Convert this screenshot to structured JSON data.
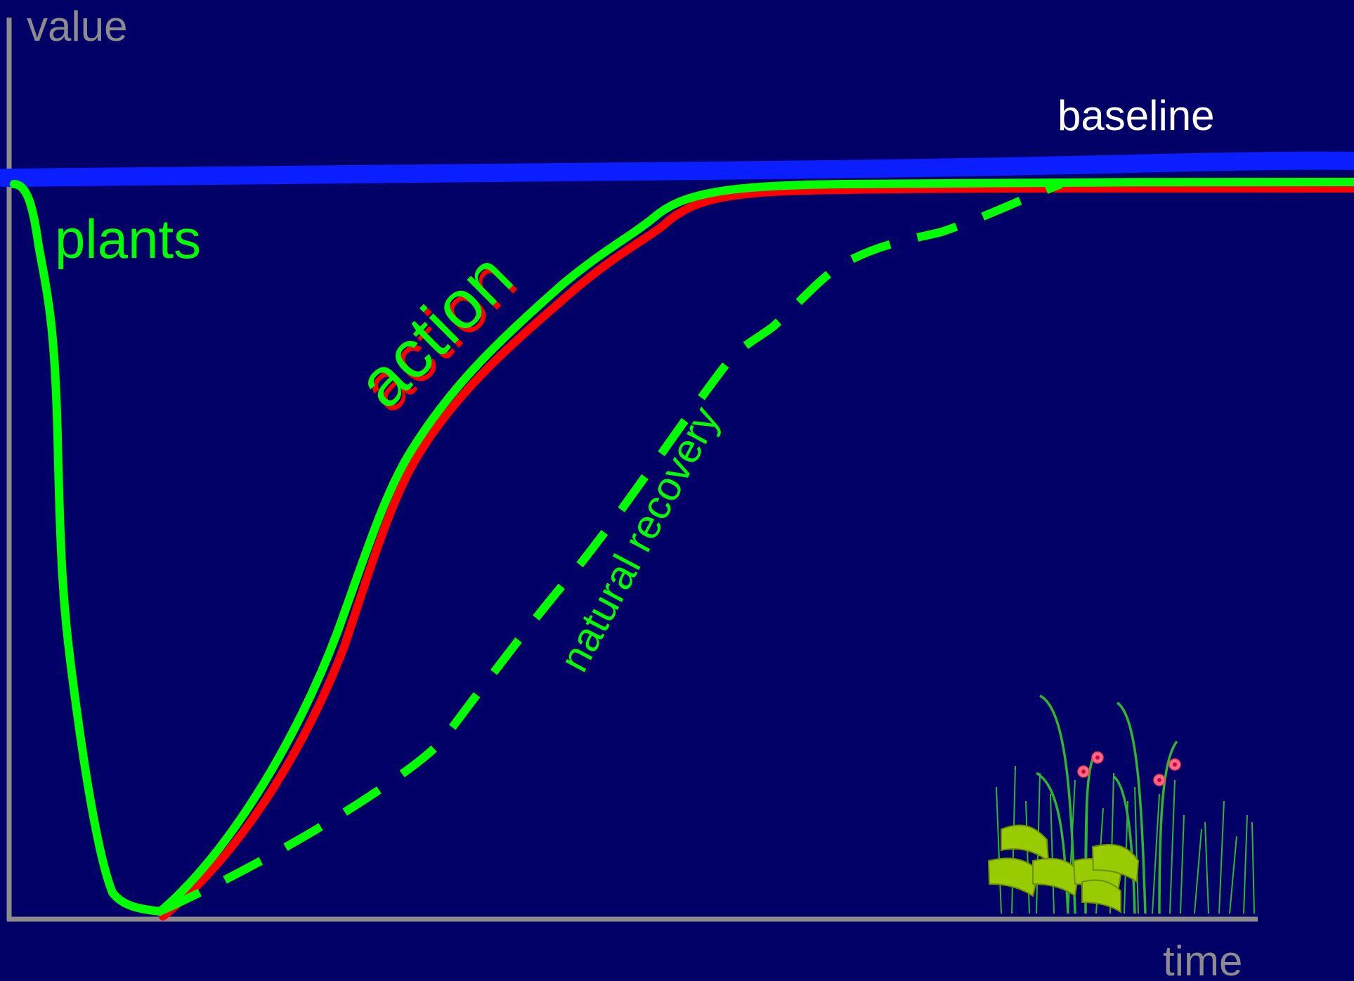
{
  "labels": {
    "y_axis": "value",
    "x_axis": "time",
    "baseline": "baseline",
    "plants": "plants",
    "action": "action",
    "natural_recovery": "natural recovery"
  },
  "colors": {
    "background": "#000066",
    "axis": "#8c8c8c",
    "baseline": "#0a1eff",
    "plants": "#00ff00",
    "action_shadow": "#ff0000",
    "label_white": "#ffffff",
    "leaf": "#99cc00",
    "flower": "#ff6b8a"
  },
  "illustration": {
    "name": "grass-and-flowers-icon"
  }
}
